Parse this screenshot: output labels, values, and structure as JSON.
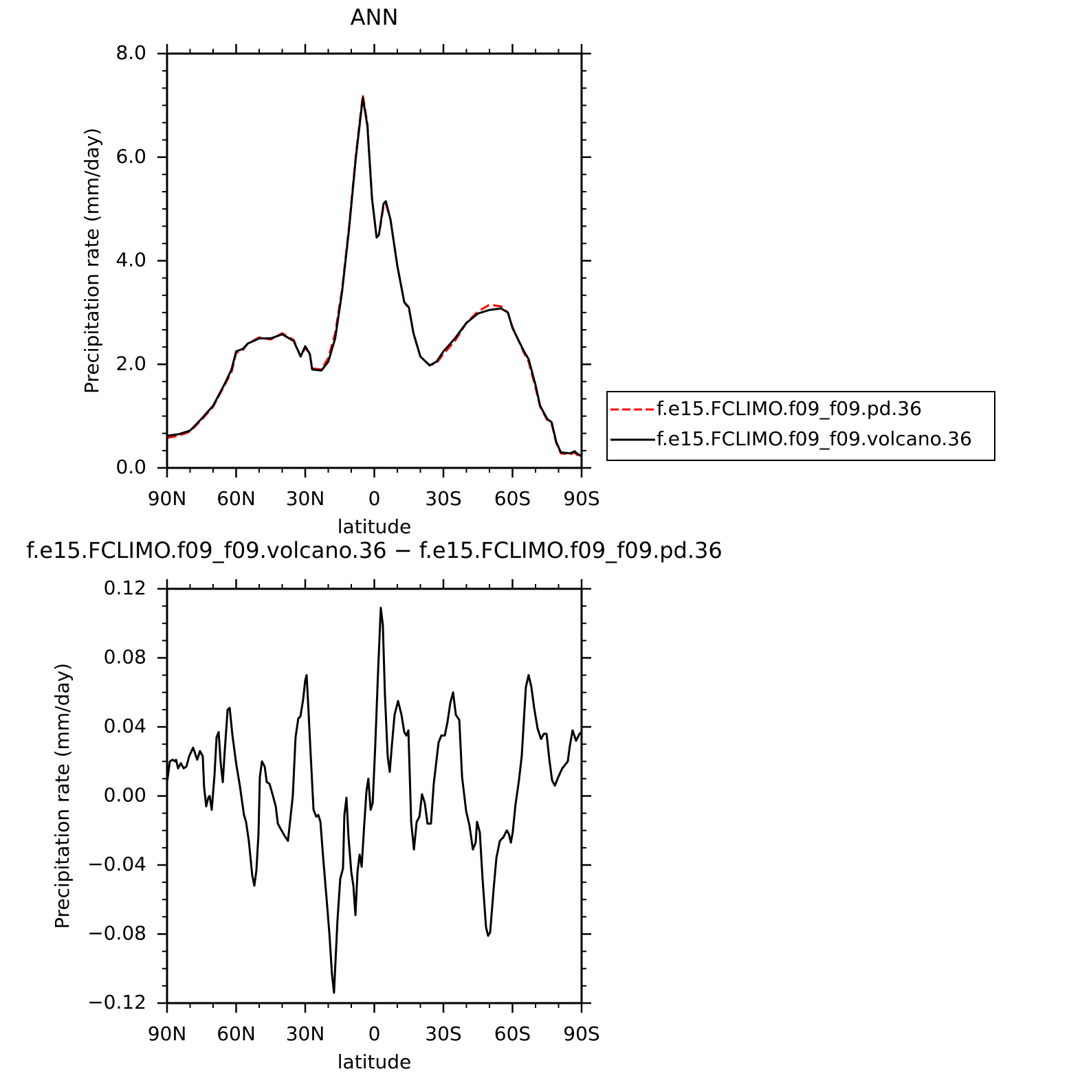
{
  "chart_data": [
    {
      "type": "line",
      "title": "ANN",
      "x_label": "latitude",
      "y_label": "Precipitation rate (mm/day)",
      "x": [
        90,
        85,
        80,
        75,
        70,
        65,
        62,
        60,
        57,
        55,
        50,
        45,
        40,
        35,
        32,
        30,
        28,
        27,
        23,
        20,
        17,
        14,
        11,
        8,
        5,
        3,
        1,
        -1,
        -2,
        -4,
        -5,
        -7,
        -10,
        -13,
        -15,
        -17,
        -20,
        -24,
        -27,
        -30,
        -35,
        -40,
        -45,
        -50,
        -55,
        -58,
        -60,
        -65,
        -67,
        -70,
        -72,
        -75,
        -77,
        -79,
        -81,
        -85,
        -87,
        -88,
        -90
      ],
      "series": [
        {
          "name": "f.e15.FCLIMO.f09_f09.pd.36",
          "color": "#ff0000",
          "style": "dashed",
          "values": [
            0.58,
            0.62,
            0.7,
            0.93,
            1.18,
            1.6,
            1.85,
            2.22,
            2.28,
            2.4,
            2.52,
            2.48,
            2.6,
            2.47,
            2.15,
            2.32,
            2.2,
            1.92,
            1.9,
            2.12,
            2.6,
            3.45,
            4.65,
            6.05,
            7.2,
            6.65,
            5.2,
            4.45,
            4.5,
            5.05,
            5.1,
            4.8,
            3.9,
            3.2,
            3.08,
            2.6,
            2.15,
            1.98,
            2.02,
            2.2,
            2.45,
            2.8,
            3.02,
            3.15,
            3.12,
            3.0,
            2.72,
            2.22,
            2.05,
            1.55,
            1.18,
            0.93,
            0.85,
            0.48,
            0.28,
            0.26,
            0.3,
            0.25,
            0.2
          ]
        },
        {
          "name": "f.e15.FCLIMO.f09_f09.volcano.36",
          "color": "#000000",
          "style": "solid",
          "values": [
            0.62,
            0.65,
            0.72,
            0.95,
            1.2,
            1.62,
            1.9,
            2.25,
            2.3,
            2.4,
            2.5,
            2.5,
            2.58,
            2.45,
            2.15,
            2.35,
            2.2,
            1.9,
            1.88,
            2.05,
            2.5,
            3.4,
            4.6,
            6.0,
            7.15,
            6.6,
            5.2,
            4.45,
            4.5,
            5.1,
            5.15,
            4.8,
            3.9,
            3.2,
            3.1,
            2.6,
            2.15,
            1.98,
            2.05,
            2.25,
            2.5,
            2.8,
            2.98,
            3.05,
            3.08,
            3.0,
            2.7,
            2.25,
            2.1,
            1.6,
            1.2,
            0.95,
            0.88,
            0.5,
            0.3,
            0.28,
            0.32,
            0.28,
            0.22
          ]
        }
      ],
      "xlim": [
        90,
        -90
      ],
      "xticks": [
        {
          "value": 90,
          "label": "90N"
        },
        {
          "value": 60,
          "label": "60N"
        },
        {
          "value": 30,
          "label": "30N"
        },
        0,
        {
          "value": -30,
          "label": "30S"
        },
        {
          "value": -60,
          "label": "60S"
        },
        {
          "value": -90,
          "label": "90S"
        }
      ],
      "ylim": [
        0,
        8
      ],
      "yticks": [
        {
          "value": 0,
          "label": "0.0"
        },
        {
          "value": 2,
          "label": "2.0"
        },
        {
          "value": 4,
          "label": "4.0"
        },
        {
          "value": 6,
          "label": "6.0"
        },
        {
          "value": 8,
          "label": "8.0"
        }
      ],
      "legend": "right"
    },
    {
      "type": "line",
      "title": "f.e15.FCLIMO.f09_f09.volcano.36 − f.e15.FCLIMO.f09_f09.pd.36",
      "x_label": "latitude",
      "y_label": "Precipitation rate (mm/day)",
      "x": [
        90,
        88.8,
        87.6,
        86.4,
        86.1,
        85.2,
        84,
        82.8,
        81.6,
        80.4,
        78.7,
        76.9,
        75.7,
        74.5,
        73.9,
        73,
        72.1,
        71.5,
        70.6,
        69.4,
        68.5,
        67.6,
        66.7,
        65.8,
        64.9,
        63.7,
        62.8,
        61.6,
        59.9,
        58.4,
        56.6,
        55.7,
        54.5,
        53,
        52.1,
        51.2,
        50.3,
        49.7,
        48.8,
        47.6,
        46.7,
        45.5,
        44,
        42.8,
        41.9,
        40.7,
        39,
        37.5,
        35.4,
        34.2,
        33,
        32.1,
        30.9,
        30,
        29.4,
        28.8,
        27.6,
        26.4,
        25.2,
        24.3,
        23.4,
        22.2,
        20.7,
        19.5,
        18.4,
        17.5,
        16,
        14.8,
        13.6,
        13,
        12.1,
        11.2,
        10,
        9.1,
        8.2,
        7.3,
        6.4,
        5.5,
        4.3,
        3.4,
        2.6,
        1.6,
        0.7,
        -0.4,
        -1.6,
        -2.8,
        -3.7,
        -4.6,
        -5.8,
        -6.7,
        -7.6,
        -8.8,
        -10.3,
        -11.8,
        -13,
        -13.9,
        -14.8,
        -16,
        -17.2,
        -18.4,
        -19.6,
        -20.7,
        -21.9,
        -23.1,
        -24.6,
        -25.8,
        -27.9,
        -29.1,
        -30.6,
        -31.8,
        -33,
        -34.2,
        -35.4,
        -36.9,
        -38.1,
        -39.9,
        -41.3,
        -42.8,
        -44,
        -44.6,
        -45.8,
        -47,
        -48.5,
        -49.4,
        -50.3,
        -51.8,
        -53,
        -54.5,
        -56,
        -57.5,
        -58.4,
        -59.3,
        -60.1,
        -61.3,
        -62.8,
        -64,
        -65.8,
        -67,
        -68.2,
        -69.4,
        -70.9,
        -72.4,
        -73.6,
        -74.8,
        -76,
        -77.2,
        -78.4,
        -79.9,
        -81.6,
        -82.8,
        -84,
        -84.9,
        -86.1,
        -87.6,
        -89.1,
        -90
      ],
      "series": [
        {
          "color": "#000000",
          "style": "solid",
          "values": [
            0.008,
            0.02,
            0.021,
            0.02,
            0.021,
            0.016,
            0.019,
            0.016,
            0.017,
            0.023,
            0.028,
            0.021,
            0.026,
            0.023,
            0.005,
            -0.006,
            -0.001,
            0.0,
            -0.008,
            0.012,
            0.034,
            0.037,
            0.019,
            0.008,
            0.027,
            0.05,
            0.051,
            0.035,
            0.018,
            0.006,
            -0.011,
            -0.015,
            -0.026,
            -0.046,
            -0.052,
            -0.043,
            -0.022,
            0.011,
            0.02,
            0.017,
            0.008,
            0.007,
            0.0,
            -0.006,
            -0.016,
            -0.019,
            -0.023,
            -0.026,
            0.0,
            0.034,
            0.045,
            0.046,
            0.056,
            0.067,
            0.07,
            0.055,
            0.023,
            -0.008,
            -0.012,
            -0.011,
            -0.015,
            -0.036,
            -0.06,
            -0.08,
            -0.103,
            -0.114,
            -0.072,
            -0.048,
            -0.042,
            -0.011,
            -0.001,
            -0.024,
            -0.044,
            -0.052,
            -0.069,
            -0.044,
            -0.034,
            -0.041,
            -0.015,
            0.003,
            0.01,
            -0.008,
            -0.004,
            0.029,
            0.071,
            0.109,
            0.099,
            0.059,
            0.023,
            0.014,
            0.029,
            0.047,
            0.055,
            0.047,
            0.037,
            0.035,
            0.038,
            -0.015,
            -0.031,
            -0.015,
            -0.012,
            0.001,
            -0.004,
            -0.016,
            -0.016,
            0.007,
            0.031,
            0.035,
            0.035,
            0.043,
            0.054,
            0.06,
            0.047,
            0.044,
            0.011,
            -0.009,
            -0.017,
            -0.031,
            -0.027,
            -0.015,
            -0.021,
            -0.048,
            -0.076,
            -0.081,
            -0.079,
            -0.054,
            -0.036,
            -0.026,
            -0.024,
            -0.02,
            -0.022,
            -0.027,
            -0.021,
            -0.005,
            0.009,
            0.023,
            0.063,
            0.07,
            0.063,
            0.051,
            0.039,
            0.033,
            0.036,
            0.036,
            0.021,
            0.009,
            0.006,
            0.011,
            0.016,
            0.018,
            0.02,
            0.029,
            0.038,
            0.032,
            0.036,
            0.037
          ]
        }
      ],
      "xlim": [
        90,
        -90
      ],
      "xticks": [
        {
          "value": 90,
          "label": "90N"
        },
        {
          "value": 60,
          "label": "60N"
        },
        {
          "value": 30,
          "label": "30N"
        },
        0,
        {
          "value": -30,
          "label": "30S"
        },
        {
          "value": -60,
          "label": "60S"
        },
        {
          "value": -90,
          "label": "90S"
        }
      ],
      "ylim": [
        -0.12,
        0.12
      ],
      "yticks": [
        {
          "value": -0.12,
          "label": "−0.12"
        },
        {
          "value": -0.08,
          "label": "−0.08"
        },
        {
          "value": -0.04,
          "label": "−0.04"
        },
        {
          "value": 0,
          "label": "0.00"
        },
        0.04,
        0.08,
        0.12
      ]
    }
  ]
}
